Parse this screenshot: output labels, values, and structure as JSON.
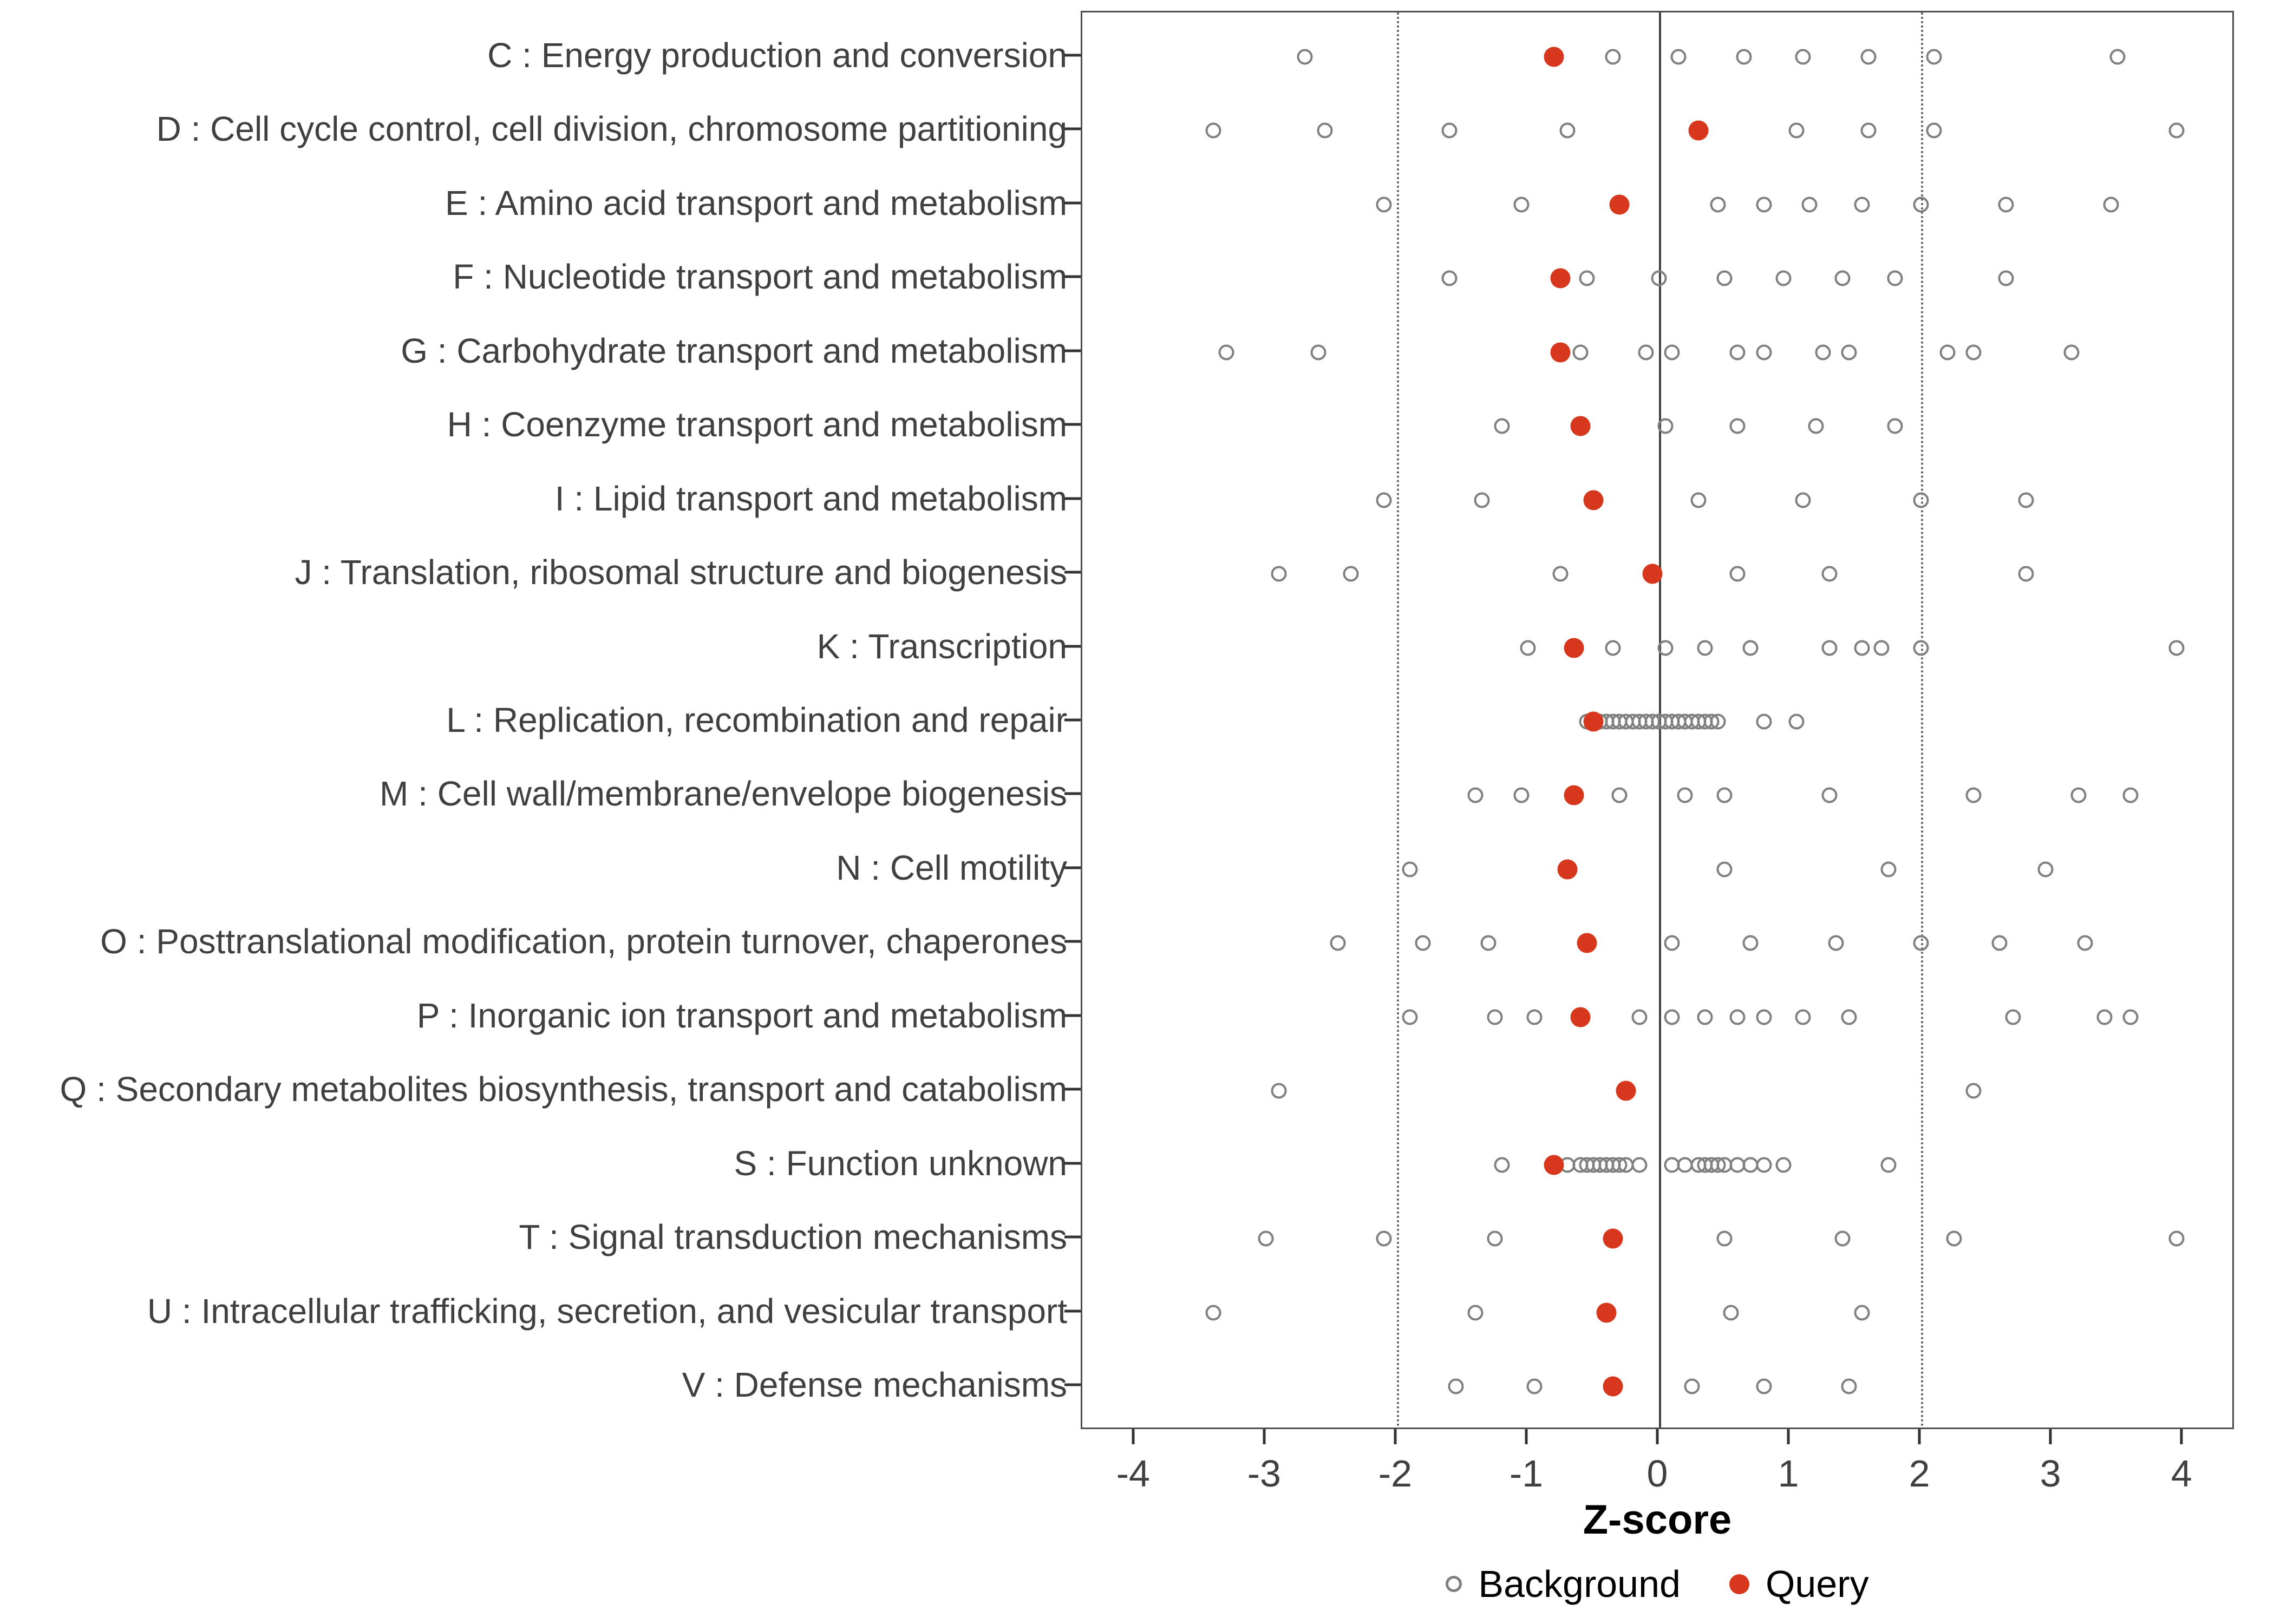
{
  "colors": {
    "page_bg": "#ffffff",
    "query": "#D7381D",
    "background_stroke": "#808080",
    "axis_text": "#404040",
    "zero_line": "#404040",
    "threshold_line": "#595959",
    "panel_border": "#4d4d4d"
  },
  "chart_data": {
    "type": "scatter",
    "subtype": "horizontal-strip-dotplot",
    "title": "",
    "xlabel": "Z-score",
    "ylabel": "",
    "xlim": [
      -4.4,
      4.4
    ],
    "xticks": [
      -4,
      -3,
      -2,
      -1,
      0,
      1,
      2,
      3,
      4
    ],
    "grid": false,
    "reference_lines": {
      "solid_x": [
        0
      ],
      "dotted_x": [
        -2,
        2
      ]
    },
    "legend": {
      "position": "bottom",
      "items": [
        {
          "label": "Background",
          "marker": "open-circle",
          "color": "#808080"
        },
        {
          "label": "Query",
          "marker": "filled-circle",
          "color": "#D7381D"
        }
      ]
    },
    "rows": [
      {
        "category": "C : Energy production and conversion",
        "query": -0.8,
        "background": [
          -2.7,
          -0.35,
          0.15,
          0.65,
          1.1,
          1.6,
          2.1,
          3.5
        ]
      },
      {
        "category": "D : Cell cycle control, cell division, chromosome partitioning",
        "query": 0.3,
        "background": [
          -3.4,
          -2.55,
          -1.6,
          -0.7,
          1.05,
          1.6,
          2.1,
          3.95
        ]
      },
      {
        "category": "E : Amino acid transport and metabolism",
        "query": -0.3,
        "background": [
          -2.1,
          -1.05,
          0.45,
          0.8,
          1.15,
          1.55,
          2.0,
          2.65,
          3.45
        ]
      },
      {
        "category": "F : Nucleotide transport and metabolism",
        "query": -0.75,
        "background": [
          -1.6,
          -0.55,
          0.0,
          0.5,
          0.95,
          1.4,
          1.8,
          2.65
        ]
      },
      {
        "category": "G : Carbohydrate transport and metabolism",
        "query": -0.75,
        "background": [
          -3.3,
          -2.6,
          -0.6,
          -0.1,
          0.1,
          0.6,
          0.8,
          1.25,
          1.45,
          2.2,
          2.4,
          3.15
        ]
      },
      {
        "category": "H : Coenzyme transport and metabolism",
        "query": -0.6,
        "background": [
          -1.2,
          0.05,
          0.6,
          1.2,
          1.8
        ]
      },
      {
        "category": "I : Lipid transport and metabolism",
        "query": -0.5,
        "background": [
          -2.1,
          -1.35,
          0.3,
          1.1,
          2.0,
          2.8
        ]
      },
      {
        "category": "J : Translation, ribosomal structure and biogenesis",
        "query": -0.05,
        "background": [
          -2.9,
          -2.35,
          -0.75,
          0.6,
          1.3,
          2.8
        ]
      },
      {
        "category": "K : Transcription",
        "query": -0.65,
        "background": [
          -1.0,
          -0.35,
          0.05,
          0.35,
          0.7,
          1.3,
          1.55,
          1.7,
          2.0,
          3.95
        ]
      },
      {
        "category": "L : Replication, recombination and repair",
        "query": -0.5,
        "background": [
          -0.55,
          -0.45,
          -0.4,
          -0.35,
          -0.3,
          -0.25,
          -0.2,
          -0.15,
          -0.1,
          -0.05,
          0.0,
          0.05,
          0.1,
          0.15,
          0.2,
          0.25,
          0.3,
          0.35,
          0.4,
          0.45,
          0.8,
          1.05
        ]
      },
      {
        "category": "M : Cell wall/membrane/envelope biogenesis",
        "query": -0.65,
        "background": [
          -1.4,
          -1.05,
          -0.3,
          0.2,
          0.5,
          1.3,
          2.4,
          3.2,
          3.6
        ]
      },
      {
        "category": "N : Cell motility",
        "query": -0.7,
        "background": [
          -1.9,
          0.5,
          1.75,
          2.95
        ]
      },
      {
        "category": "O : Posttranslational modification, protein turnover, chaperones",
        "query": -0.55,
        "background": [
          -2.45,
          -1.8,
          -1.3,
          0.1,
          0.7,
          1.35,
          2.0,
          2.6,
          3.25
        ]
      },
      {
        "category": "P : Inorganic ion transport and metabolism",
        "query": -0.6,
        "background": [
          -1.9,
          -1.25,
          -0.95,
          -0.15,
          0.1,
          0.35,
          0.6,
          0.8,
          1.1,
          1.45,
          2.7,
          3.4,
          3.6
        ]
      },
      {
        "category": "Q : Secondary metabolites biosynthesis, transport and catabolism",
        "query": -0.25,
        "background": [
          -2.9,
          2.4
        ]
      },
      {
        "category": "S : Function unknown",
        "query": -0.8,
        "background": [
          -1.2,
          -0.7,
          -0.6,
          -0.55,
          -0.5,
          -0.45,
          -0.4,
          -0.35,
          -0.3,
          -0.25,
          -0.15,
          0.1,
          0.2,
          0.3,
          0.35,
          0.4,
          0.45,
          0.5,
          0.6,
          0.7,
          0.8,
          0.95,
          1.75
        ]
      },
      {
        "category": "T : Signal transduction mechanisms",
        "query": -0.35,
        "background": [
          -3.0,
          -2.1,
          -1.25,
          0.5,
          1.4,
          2.25,
          3.95
        ]
      },
      {
        "category": "U : Intracellular trafficking, secretion, and vesicular transport",
        "query": -0.4,
        "background": [
          -3.4,
          -1.4,
          0.55,
          1.55
        ]
      },
      {
        "category": "V : Defense mechanisms",
        "query": -0.35,
        "background": [
          -1.55,
          -0.95,
          0.25,
          0.8,
          1.45
        ]
      }
    ]
  }
}
